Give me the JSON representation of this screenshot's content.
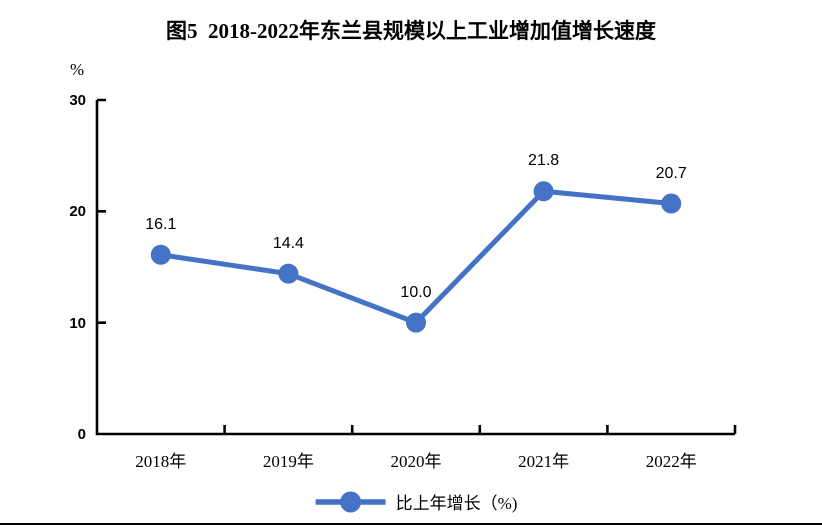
{
  "chart_data": {
    "type": "line",
    "title": "图5  2018-2022年东兰县规模以上工业增加值增长速度",
    "categories": [
      "2018年",
      "2019年",
      "2020年",
      "2021年",
      "2022年"
    ],
    "series": [
      {
        "name": "比上年增长（%)",
        "values": [
          16.1,
          14.4,
          10.0,
          21.8,
          20.7
        ],
        "color": "#4472C4"
      }
    ],
    "data_labels": [
      "16.1",
      "14.4",
      "10.0",
      "21.8",
      "20.7"
    ],
    "xlabel": "",
    "ylabel": "%",
    "ylim": [
      0,
      30
    ],
    "y_tick_step": 10,
    "y_tick_labels": [
      "0",
      "10",
      "20",
      "30"
    ],
    "grid": false,
    "legend_position": "bottom",
    "axis_color": "#000000",
    "line_color": "#4472C4",
    "marker": "circle"
  }
}
